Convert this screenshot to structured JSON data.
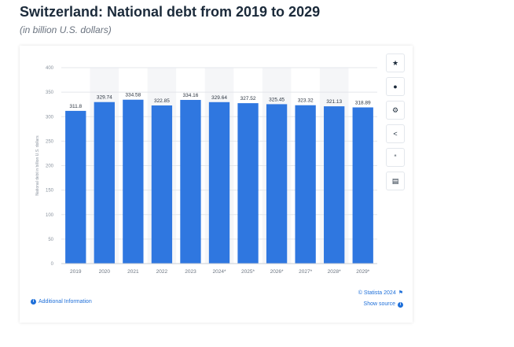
{
  "header": {
    "title": "Switzerland: National debt from 2019 to 2029",
    "subtitle": "(in billion U.S. dollars)"
  },
  "sidebar": {
    "icons": [
      "star-icon",
      "bell-icon",
      "gear-icon",
      "share-icon",
      "quote-icon",
      "print-icon"
    ],
    "glyphs": [
      "★",
      "●",
      "⚙",
      "<",
      "“",
      "▤"
    ]
  },
  "footer": {
    "additional_info": "Additional Information",
    "copyright": "© Statista 2024",
    "show_source": "Show source"
  },
  "colors": {
    "bar": "#2f77e0",
    "accent": "#1e6fd9"
  },
  "chart_data": {
    "type": "bar",
    "categories": [
      "2019",
      "2020",
      "2021",
      "2022",
      "2023",
      "2024*",
      "2025*",
      "2026*",
      "2027*",
      "2028*",
      "2029*"
    ],
    "values": [
      311.8,
      329.74,
      334.58,
      322.85,
      334.16,
      329.64,
      327.52,
      325.45,
      323.32,
      321.13,
      318.89
    ],
    "value_labels": [
      "311.8",
      "329.74",
      "334.58",
      "322.85",
      "334.16",
      "329.64",
      "327.52",
      "325.45",
      "323.32",
      "321.13",
      "318.89"
    ],
    "ylabel": "National debt in billion U.S. dollars",
    "ylim": [
      0,
      400
    ],
    "yticks": [
      0,
      50,
      100,
      150,
      200,
      250,
      300,
      350,
      400
    ],
    "grid": true
  }
}
